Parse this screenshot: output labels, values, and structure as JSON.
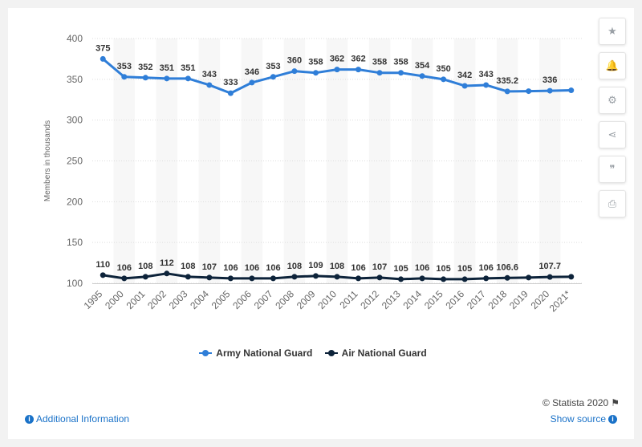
{
  "chart_data": {
    "type": "line",
    "categories": [
      "1995",
      "2000",
      "2001",
      "2002",
      "2003",
      "2004",
      "2005",
      "2006",
      "2007",
      "2008",
      "2009",
      "2010",
      "2011",
      "2012",
      "2013",
      "2014",
      "2015",
      "2016",
      "2017",
      "2018",
      "2019",
      "2020",
      "2021*"
    ],
    "series": [
      {
        "name": "Army National Guard",
        "color": "#2f7ed8",
        "values": [
          375,
          353,
          352,
          351,
          351,
          343,
          333,
          346,
          353,
          360,
          358,
          362,
          362,
          358,
          358,
          354,
          350,
          342,
          343,
          335.2,
          335.5,
          336,
          336.5
        ],
        "labels": [
          "375",
          "353",
          "352",
          "351",
          "351",
          "343",
          "333",
          "346",
          "353",
          "360",
          "358",
          "362",
          "362",
          "358",
          "358",
          "354",
          "350",
          "342",
          "343",
          "335.2",
          "",
          "336",
          ""
        ]
      },
      {
        "name": "Air National Guard",
        "color": "#0d233a",
        "values": [
          110,
          106,
          108,
          112,
          108,
          107,
          106,
          106,
          106,
          108,
          109,
          108,
          106,
          107,
          105,
          106,
          105,
          105,
          106,
          106.6,
          107,
          107.7,
          108
        ],
        "labels": [
          "110",
          "106",
          "108",
          "112",
          "108",
          "107",
          "106",
          "106",
          "106",
          "108",
          "109",
          "108",
          "106",
          "107",
          "105",
          "106",
          "105",
          "105",
          "106",
          "106.6",
          "",
          "107.7",
          ""
        ]
      }
    ],
    "ylabel": "Members in thousands",
    "ylim": [
      100,
      400
    ],
    "yticks": [
      "100",
      "150",
      "200",
      "250",
      "300",
      "350",
      "400"
    ],
    "grid": true,
    "legend_position": "bottom"
  },
  "sidebar": {
    "buttons": [
      {
        "name": "star-icon",
        "glyph": "★"
      },
      {
        "name": "bell-icon",
        "glyph": "🔔"
      },
      {
        "name": "gear-icon",
        "glyph": "⚙"
      },
      {
        "name": "share-icon",
        "glyph": "⋖"
      },
      {
        "name": "quote-icon",
        "glyph": "❞"
      },
      {
        "name": "print-icon",
        "glyph": "⎙"
      }
    ]
  },
  "credits": "© Statista 2020",
  "footer": {
    "additional_info": "Additional Information",
    "show_source": "Show source"
  }
}
